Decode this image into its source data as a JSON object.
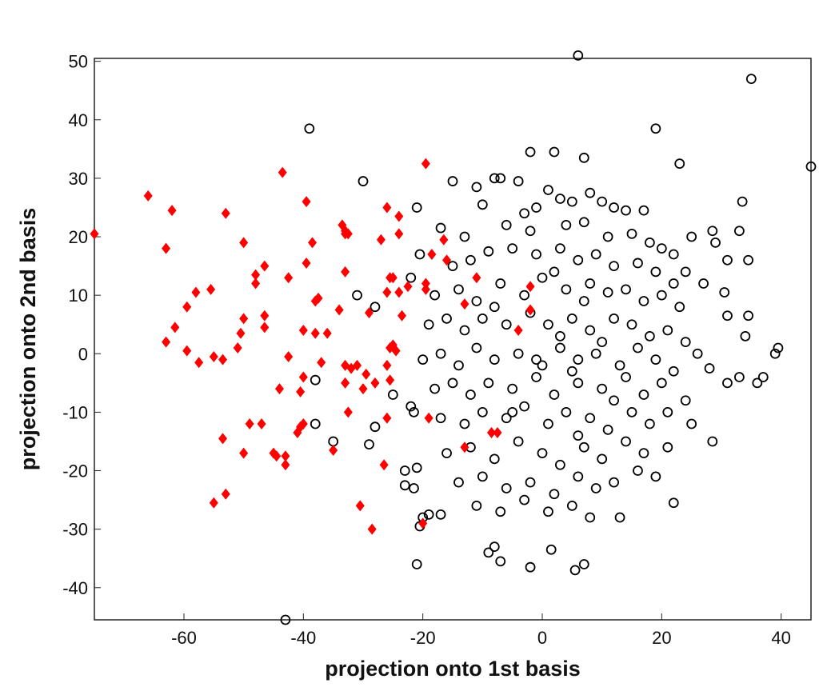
{
  "chart_data": {
    "type": "scatter",
    "x_label": "projection onto 1st basis",
    "y_label": "projection onto 2nd basis",
    "xlim": [
      -75,
      45
    ],
    "ylim": [
      -45.5,
      50.5
    ],
    "xticks": [
      -60,
      -40,
      -20,
      0,
      20,
      40
    ],
    "yticks": [
      -40,
      -30,
      -20,
      -10,
      0,
      10,
      20,
      30,
      40,
      50
    ],
    "series": [
      {
        "color": "#000000",
        "marker": "circle",
        "x": [
          6,
          35,
          45,
          -39,
          19,
          23,
          -30,
          -2,
          2,
          7,
          -43,
          -21,
          -2,
          5.5,
          7,
          -9,
          -8,
          -7,
          1.5,
          -20.5,
          -20,
          -19,
          -17,
          13,
          22,
          39.5,
          39,
          37,
          36,
          34.5,
          34,
          33,
          31,
          34.5,
          33.5,
          33,
          28.5,
          29,
          31,
          30.5,
          31,
          25,
          24,
          27,
          26,
          28,
          28.5,
          -38,
          -38,
          -35,
          -31,
          -28,
          -29,
          -28,
          -21,
          -22,
          -20.5,
          -22,
          -21.5,
          -23,
          -23,
          -21,
          -21.5,
          -25,
          -15,
          -11,
          -8,
          -7,
          -4,
          -3,
          -1,
          1,
          3,
          5,
          8,
          10,
          12,
          14,
          17,
          -17,
          -13,
          -10,
          -6,
          -2,
          4,
          7,
          11,
          15,
          18,
          20,
          22,
          -15,
          -12,
          -9,
          -5,
          -1,
          3,
          6,
          9,
          12,
          16,
          19,
          22,
          -18,
          -14,
          -11,
          -7,
          -3,
          0,
          4,
          8,
          11,
          14,
          17,
          20,
          23,
          -19,
          -16,
          -13,
          -10,
          -6,
          -2,
          1,
          5,
          8,
          12,
          15,
          18,
          21,
          24,
          -20,
          -17,
          -14,
          -11,
          -8,
          -4,
          0,
          3,
          6,
          9,
          13,
          16,
          19,
          22,
          -18,
          -15,
          -12,
          -9,
          -5,
          -1,
          2,
          6,
          10,
          14,
          17,
          20,
          24,
          -17,
          -13,
          -10,
          -6,
          -3,
          1,
          4,
          8,
          11,
          15,
          18,
          21,
          25,
          -16,
          -12,
          -8,
          -4,
          0,
          3,
          7,
          10,
          14,
          17,
          21,
          -14,
          -10,
          -6,
          -2,
          2,
          6,
          9,
          12,
          16,
          19,
          -11,
          -7,
          -3,
          1,
          5,
          8,
          -5,
          3,
          7,
          -1,
          5,
          10,
          2,
          -8,
          12,
          6
        ],
        "y": [
          51,
          47,
          32,
          38.5,
          38.5,
          32.5,
          29.5,
          34.5,
          34.5,
          33.5,
          -45.5,
          -36,
          -36.5,
          -37,
          -36,
          -34,
          -33,
          -35.5,
          -33.5,
          -29.5,
          -28,
          -27.5,
          -27.5,
          -28,
          -25.5,
          1,
          0,
          -4,
          -5,
          6.5,
          3,
          -4,
          -5,
          16,
          26,
          21,
          21,
          19,
          16,
          10.5,
          6.5,
          20,
          14,
          12,
          0,
          -2.5,
          -15,
          -4.5,
          -12,
          -15,
          10,
          8,
          -15.5,
          -12.5,
          25,
          13,
          17,
          -9,
          -10,
          -20,
          -22.5,
          -19.5,
          -23,
          -7,
          29.5,
          28.5,
          30,
          30,
          29.5,
          24,
          25,
          28,
          26.5,
          26,
          27.5,
          26,
          25,
          24.5,
          24.5,
          21.5,
          20,
          25.5,
          22,
          21,
          22,
          22.5,
          20,
          20.5,
          19,
          18,
          17,
          15,
          16,
          17.5,
          18,
          17,
          18,
          16,
          17,
          15,
          15.5,
          14,
          12,
          10,
          11,
          9,
          12,
          10,
          13,
          11,
          12,
          10.5,
          11,
          9,
          10,
          8,
          5,
          6,
          4,
          6,
          5,
          7,
          5,
          6,
          4,
          6,
          5,
          3,
          4,
          2,
          -1,
          0,
          -2,
          1,
          -1,
          0,
          -2,
          1,
          -1,
          0,
          -2,
          1,
          -1,
          -3,
          -6,
          -5,
          -7,
          -5,
          -6,
          -4,
          -7,
          -5,
          -6,
          -4,
          -7,
          -5,
          -8,
          -11,
          -12,
          -10,
          -11,
          -9,
          -12,
          -10,
          -11,
          -13,
          -10,
          -12,
          -10,
          -12,
          -17,
          -16,
          -18,
          -15,
          -17,
          -19,
          -16,
          -18,
          -15,
          -17,
          -16,
          -22,
          -21,
          -23,
          -22,
          -24,
          -21,
          -23,
          -22,
          -20,
          -21,
          -26,
          -27,
          -25,
          -27,
          -26,
          -28,
          -10,
          3,
          9,
          -1,
          -3,
          2,
          14,
          8,
          -8,
          -14
        ]
      },
      {
        "color": "#ff0000",
        "marker": "diamond",
        "x": [
          -75,
          -66,
          -62,
          -63,
          -61.5,
          -63,
          -59.5,
          -58,
          -59.5,
          -57.5,
          -55.5,
          -55,
          -53.5,
          -53,
          -53.5,
          -55,
          -53,
          -50,
          -50,
          -51,
          -50.5,
          -50,
          -49,
          -48,
          -48,
          -47,
          -46.5,
          -46.5,
          -46.5,
          -45,
          -44.5,
          -44,
          -43,
          -43,
          -42.5,
          -42.5,
          -43.5,
          -39.5,
          -39.5,
          -38.5,
          -38,
          -37.5,
          -38,
          -37,
          -36,
          -40,
          -40,
          -40.5,
          -40,
          -41,
          -40.5,
          -35,
          -34,
          -33.5,
          -33,
          -33,
          -32.5,
          -33,
          -33,
          -32,
          -33,
          -32.5,
          -31,
          -30,
          -30.5,
          -29.5,
          -29,
          -28.5,
          -28,
          -27,
          -26,
          -26,
          -25.5,
          -25,
          -25,
          -25.5,
          -24.5,
          -26,
          -25.5,
          -26,
          -26.5,
          -24,
          -24,
          -24,
          -23.5,
          -22.5,
          -19.5,
          -19.5,
          -19.5,
          -18.5,
          -19,
          -20,
          -16.5,
          -16,
          -13,
          -13,
          -11,
          -7.5,
          -8.5,
          -2,
          -4,
          -2
        ],
        "y": [
          20.5,
          27,
          24.5,
          18,
          4.5,
          2,
          8,
          10.5,
          0.5,
          -1.5,
          11,
          -0.5,
          -1,
          24,
          -14.5,
          -25.5,
          -24,
          19,
          6,
          1,
          3.5,
          -17,
          -12,
          12,
          13.5,
          -12,
          15,
          6.5,
          4.5,
          -17,
          -17.5,
          -6,
          -19,
          -17.5,
          -0.5,
          13,
          31,
          26,
          15.5,
          19,
          9,
          9.5,
          3.5,
          -1.5,
          3.5,
          4,
          -4,
          -6.5,
          -12,
          -13.5,
          -12.5,
          -16.5,
          7.5,
          22,
          20.5,
          21,
          20.5,
          14,
          -2,
          -2.5,
          -5,
          -10,
          -2,
          -6,
          -26,
          -3.5,
          7,
          -30,
          -5,
          19.5,
          25,
          10.5,
          13,
          13,
          1.5,
          1,
          0.5,
          -2,
          -4.5,
          -11,
          -19,
          20.5,
          23.5,
          10.5,
          6.5,
          11.5,
          32.5,
          12,
          11,
          17,
          -11,
          -29,
          19.5,
          16,
          -16,
          8.5,
          13,
          -13.5,
          -13.5,
          7.5,
          4,
          11.5
        ]
      }
    ]
  }
}
